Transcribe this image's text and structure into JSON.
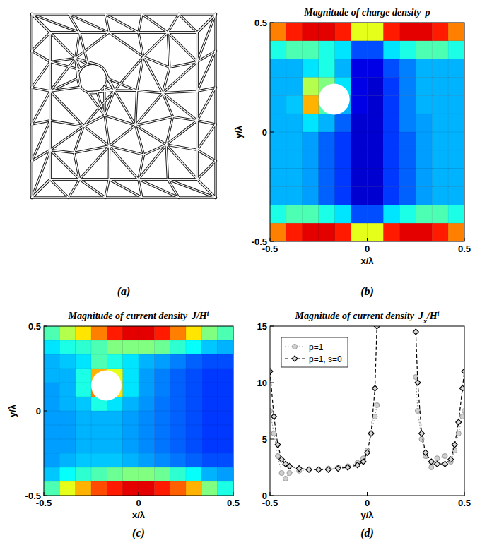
{
  "chart_data": [
    {
      "type": "mesh",
      "panel_label": "(a)",
      "xlim": [
        -0.5,
        0.5
      ],
      "ylim": [
        -0.5,
        0.5
      ],
      "tick_labels": false,
      "hole": {
        "x": -0.17,
        "y": 0.15,
        "r": 0.08
      }
    },
    {
      "type": "heatmap",
      "title": "Magnitude of charge density",
      "title_symbol": "ρ",
      "panel_label": "(b)",
      "x_label": "x/λ",
      "y_label": "y/λ",
      "xlim": [
        -0.5,
        0.5
      ],
      "ylim": [
        -0.5,
        0.5
      ],
      "xticks": [
        -0.5,
        0,
        0.5
      ],
      "yticks": [
        -0.5,
        0,
        0.5
      ],
      "zlim": [
        0,
        1
      ],
      "hole": {
        "x": -0.17,
        "y": 0.15,
        "r": 0.08
      },
      "cells": [
        [
          0.75,
          0.85,
          0.9,
          0.9,
          0.85,
          0.6,
          0.6,
          0.85,
          0.9,
          0.9,
          0.85,
          0.75
        ],
        [
          0.4,
          0.45,
          0.45,
          0.4,
          0.35,
          0.2,
          0.2,
          0.35,
          0.4,
          0.45,
          0.45,
          0.4
        ],
        [
          0.3,
          0.3,
          0.35,
          0.4,
          0.3,
          0.1,
          0.1,
          0.2,
          0.25,
          0.3,
          0.3,
          0.3
        ],
        [
          0.3,
          0.3,
          0.55,
          0.5,
          0.35,
          0.1,
          0.08,
          0.18,
          0.25,
          0.3,
          0.3,
          0.3
        ],
        [
          0.3,
          0.32,
          0.7,
          0.45,
          0.3,
          0.1,
          0.08,
          0.18,
          0.25,
          0.3,
          0.3,
          0.3
        ],
        [
          0.3,
          0.3,
          0.35,
          0.3,
          0.22,
          0.08,
          0.08,
          0.18,
          0.25,
          0.28,
          0.3,
          0.3
        ],
        [
          0.3,
          0.3,
          0.28,
          0.22,
          0.18,
          0.08,
          0.08,
          0.18,
          0.22,
          0.28,
          0.3,
          0.3
        ],
        [
          0.3,
          0.3,
          0.28,
          0.22,
          0.18,
          0.08,
          0.08,
          0.18,
          0.22,
          0.28,
          0.3,
          0.3
        ],
        [
          0.3,
          0.3,
          0.28,
          0.22,
          0.18,
          0.08,
          0.08,
          0.18,
          0.22,
          0.28,
          0.3,
          0.3
        ],
        [
          0.3,
          0.3,
          0.28,
          0.22,
          0.18,
          0.08,
          0.08,
          0.18,
          0.22,
          0.28,
          0.3,
          0.3
        ],
        [
          0.4,
          0.45,
          0.45,
          0.4,
          0.35,
          0.2,
          0.2,
          0.35,
          0.4,
          0.45,
          0.45,
          0.4
        ],
        [
          0.75,
          0.85,
          0.9,
          0.9,
          0.85,
          0.6,
          0.6,
          0.85,
          0.9,
          0.9,
          0.85,
          0.75
        ]
      ]
    },
    {
      "type": "heatmap",
      "title": "Magnitude of current density",
      "title_symbol": "J",
      "title_unit": "/H",
      "title_unit_sup": "i",
      "panel_label": "(c)",
      "x_label": "x/λ",
      "y_label": "y/λ",
      "xlim": [
        -0.5,
        0.5
      ],
      "ylim": [
        -0.5,
        0.5
      ],
      "xticks": [
        -0.5,
        0,
        0.5
      ],
      "yticks": [
        -0.5,
        0,
        0.5
      ],
      "zlim": [
        0,
        1
      ],
      "hole": {
        "x": -0.17,
        "y": 0.15,
        "r": 0.08
      },
      "cells": [
        [
          0.45,
          0.55,
          0.65,
          0.75,
          0.85,
          0.9,
          0.9,
          0.85,
          0.75,
          0.65,
          0.5,
          0.45
        ],
        [
          0.35,
          0.4,
          0.42,
          0.45,
          0.5,
          0.5,
          0.5,
          0.48,
          0.42,
          0.38,
          0.32,
          0.3
        ],
        [
          0.3,
          0.32,
          0.35,
          0.45,
          0.4,
          0.35,
          0.3,
          0.28,
          0.25,
          0.22,
          0.2,
          0.2
        ],
        [
          0.3,
          0.3,
          0.4,
          0.7,
          0.6,
          0.35,
          0.28,
          0.25,
          0.22,
          0.2,
          0.18,
          0.18
        ],
        [
          0.28,
          0.3,
          0.4,
          0.75,
          0.65,
          0.35,
          0.28,
          0.25,
          0.22,
          0.2,
          0.18,
          0.18
        ],
        [
          0.28,
          0.3,
          0.32,
          0.4,
          0.35,
          0.3,
          0.27,
          0.24,
          0.22,
          0.2,
          0.18,
          0.18
        ],
        [
          0.28,
          0.28,
          0.3,
          0.3,
          0.3,
          0.28,
          0.26,
          0.24,
          0.22,
          0.2,
          0.18,
          0.18
        ],
        [
          0.28,
          0.28,
          0.3,
          0.3,
          0.3,
          0.28,
          0.26,
          0.24,
          0.22,
          0.2,
          0.18,
          0.18
        ],
        [
          0.28,
          0.28,
          0.3,
          0.3,
          0.3,
          0.28,
          0.26,
          0.24,
          0.22,
          0.2,
          0.18,
          0.18
        ],
        [
          0.28,
          0.3,
          0.32,
          0.32,
          0.32,
          0.3,
          0.28,
          0.26,
          0.24,
          0.22,
          0.2,
          0.2
        ],
        [
          0.32,
          0.38,
          0.42,
          0.45,
          0.48,
          0.5,
          0.5,
          0.48,
          0.42,
          0.38,
          0.3,
          0.28
        ],
        [
          0.45,
          0.6,
          0.7,
          0.8,
          0.85,
          0.9,
          0.9,
          0.85,
          0.78,
          0.7,
          0.5,
          0.4
        ]
      ]
    },
    {
      "type": "line",
      "title": "Magnitude of current density",
      "title_symbol": "J",
      "title_symbol_sub": "x",
      "title_unit": "/H",
      "title_unit_sup": "i",
      "panel_label": "(d)",
      "x_label": "y/λ",
      "xlim": [
        -0.5,
        0.5
      ],
      "ylim": [
        0,
        15
      ],
      "xticks": [
        -0.5,
        0,
        0.5
      ],
      "yticks": [
        0,
        5,
        10,
        15
      ],
      "legend": "upper left",
      "x": [
        -0.5,
        -0.48,
        -0.46,
        -0.44,
        -0.42,
        -0.4,
        -0.35,
        -0.3,
        -0.25,
        -0.2,
        -0.15,
        -0.1,
        -0.05,
        -0.02,
        0,
        0.02,
        0.04,
        0.05,
        0.15,
        0.25,
        0.26,
        0.28,
        0.3,
        0.33,
        0.36,
        0.4,
        0.43,
        0.45,
        0.47,
        0.49,
        0.5
      ],
      "series": [
        {
          "name": "p=1",
          "color": "#999999",
          "marker": "circle",
          "line_style": "dotted",
          "values": [
            7.5,
            5.5,
            3.5,
            2.0,
            1.5,
            2.0,
            2.2,
            2.3,
            2.3,
            2.4,
            2.5,
            2.6,
            2.9,
            3.3,
            4.0,
            5.5,
            7.0,
            8.0,
            null,
            10.5,
            7.5,
            5.0,
            3.5,
            2.5,
            3.3,
            3.5,
            3.0,
            4.0,
            5.5,
            7.0,
            7.5
          ]
        },
        {
          "name": "p=1, s=0",
          "color": "#000000",
          "marker": "diamond",
          "line_style": "dashed",
          "values": [
            11,
            7,
            4.5,
            3.2,
            2.8,
            2.6,
            2.4,
            2.3,
            2.3,
            2.3,
            2.4,
            2.5,
            2.7,
            3.0,
            3.8,
            5.5,
            9.5,
            15,
            null,
            14.5,
            10,
            5.5,
            3.8,
            3.0,
            2.8,
            2.8,
            3.2,
            4.5,
            6.5,
            9.5,
            11
          ]
        }
      ]
    }
  ]
}
